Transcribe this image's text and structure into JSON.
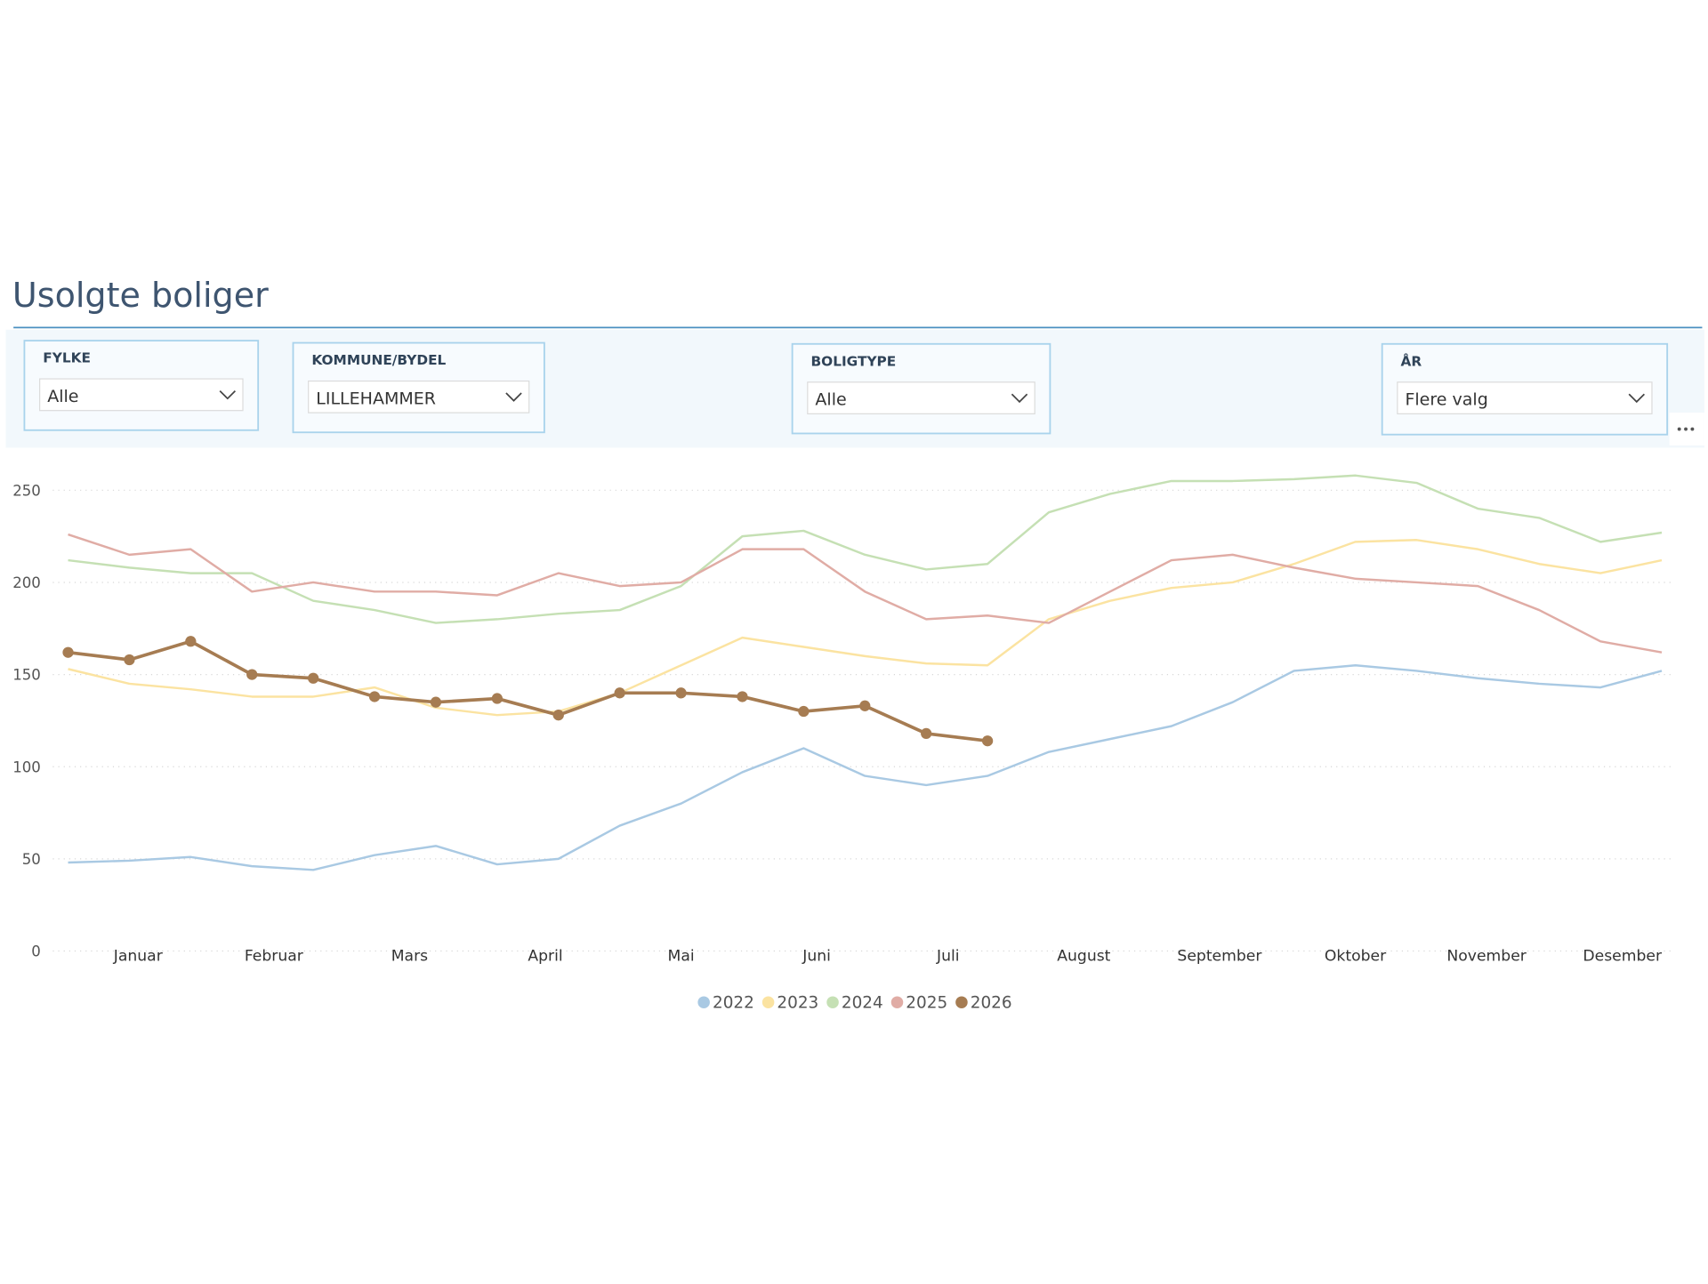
{
  "title": "Usolgte boliger",
  "filters": [
    {
      "label": "FYLKE",
      "value": "Alle"
    },
    {
      "label": "KOMMUNE/BYDEL",
      "value": "LILLEHAMMER"
    },
    {
      "label": "BOLIGTYPE",
      "value": "Alle"
    },
    {
      "label": "ÅR",
      "value": "Flere valg"
    }
  ],
  "chart_data": {
    "type": "line",
    "x": [
      1,
      15,
      29,
      43,
      57,
      71,
      85,
      99,
      113,
      127,
      141,
      155,
      169,
      183,
      197,
      211,
      225,
      239,
      253,
      267,
      281,
      295,
      309,
      323,
      337,
      351,
      365
    ],
    "xlim": [
      1,
      365
    ],
    "xticks": [
      {
        "value": 17,
        "label": "Januar"
      },
      {
        "value": 48,
        "label": "Februar"
      },
      {
        "value": 79,
        "label": "Mars"
      },
      {
        "value": 110,
        "label": "April"
      },
      {
        "value": 141,
        "label": "Mai"
      },
      {
        "value": 172,
        "label": "Juni"
      },
      {
        "value": 202,
        "label": "Juli"
      },
      {
        "value": 233,
        "label": "August"
      },
      {
        "value": 264,
        "label": "September"
      },
      {
        "value": 295,
        "label": "Oktober"
      },
      {
        "value": 325,
        "label": "November"
      },
      {
        "value": 356,
        "label": "Desember"
      }
    ],
    "ylim": [
      0,
      250
    ],
    "yticks": [
      0,
      50,
      100,
      150,
      200,
      250
    ],
    "grid": true,
    "series": [
      {
        "name": "2022",
        "color": "#a9c9e3",
        "values": [
          48,
          49,
          51,
          46,
          44,
          52,
          57,
          47,
          50,
          68,
          80,
          97,
          110,
          95,
          90,
          95,
          108,
          115,
          122,
          135,
          152,
          155,
          152,
          148,
          145,
          143,
          152
        ]
      },
      {
        "name": "2023",
        "color": "#fbe3a1",
        "values": [
          153,
          145,
          142,
          138,
          138,
          143,
          132,
          128,
          130,
          140,
          155,
          170,
          165,
          160,
          156,
          155,
          180,
          190,
          197,
          200,
          210,
          222,
          223,
          218,
          210,
          205,
          212
        ]
      },
      {
        "name": "2024",
        "color": "#c5e0b4",
        "values": [
          212,
          208,
          205,
          205,
          190,
          185,
          178,
          180,
          183,
          185,
          198,
          225,
          228,
          215,
          207,
          210,
          238,
          248,
          255,
          255,
          256,
          258,
          254,
          240,
          235,
          222,
          227
        ]
      },
      {
        "name": "2025",
        "color": "#e0aca5",
        "values": [
          226,
          215,
          218,
          195,
          200,
          195,
          195,
          193,
          205,
          198,
          200,
          218,
          218,
          195,
          180,
          182,
          178,
          195,
          212,
          215,
          208,
          202,
          200,
          198,
          185,
          168,
          162
        ]
      },
      {
        "name": "2026",
        "color": "#a67c52",
        "values": [
          162,
          158,
          168,
          150,
          148,
          138,
          135,
          137,
          128,
          140,
          140,
          138,
          130,
          133,
          118,
          114,
          null,
          null,
          null,
          null,
          null,
          null,
          null,
          null,
          null,
          null,
          null
        ]
      }
    ]
  }
}
